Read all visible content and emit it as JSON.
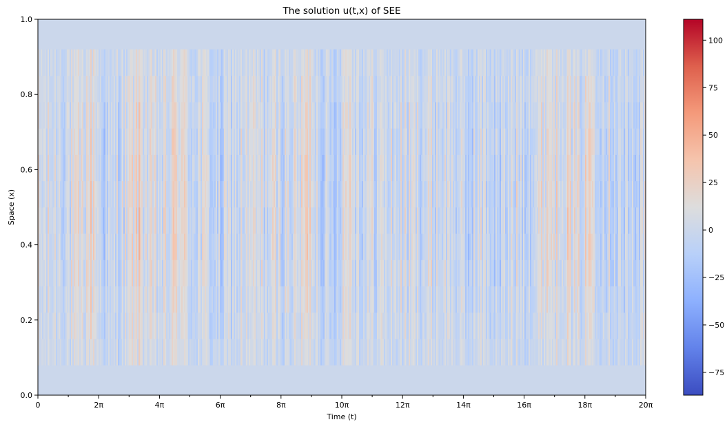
{
  "chart_data": {
    "type": "heatmap",
    "title": "The solution u(t,x) of SEE",
    "xlabel": "Time (t)",
    "ylabel": "Space (x)",
    "colormap": "coolwarm",
    "xlim": [
      0,
      20
    ],
    "x_unit": "π",
    "ylim": [
      0.0,
      1.0
    ],
    "x_ticks": [
      0,
      2,
      4,
      6,
      8,
      10,
      12,
      14,
      16,
      18,
      20
    ],
    "x_tick_labels": [
      "0",
      "2π",
      "4π",
      "6π",
      "8π",
      "10π",
      "12π",
      "14π",
      "16π",
      "18π",
      "20π"
    ],
    "x_minor_ticks": [
      1,
      3,
      5,
      7,
      9,
      11,
      13,
      15,
      17,
      19
    ],
    "y_ticks": [
      0.0,
      0.2,
      0.4,
      0.6,
      0.8,
      1.0
    ],
    "y_tick_labels": [
      "0.0",
      "0.2",
      "0.4",
      "0.6",
      "0.8",
      "1.0"
    ],
    "colorbar": {
      "min": -87,
      "max": 111,
      "ticks": [
        -75,
        -50,
        -25,
        0,
        25,
        50,
        75,
        100
      ],
      "tick_labels": [
        "−75",
        "−50",
        "−25",
        "0",
        "25",
        "50",
        "75",
        "100"
      ]
    },
    "boundary_value": 0,
    "active_x_range": [
      0.08,
      0.92
    ],
    "warm_bands_t": [
      1.75,
      3.3,
      4.6,
      8.9,
      10.2,
      16.8,
      17.3,
      18.2
    ],
    "cool_bands_t": [
      2.3,
      6.0,
      9.6,
      14.1,
      15.2,
      19.4
    ]
  }
}
